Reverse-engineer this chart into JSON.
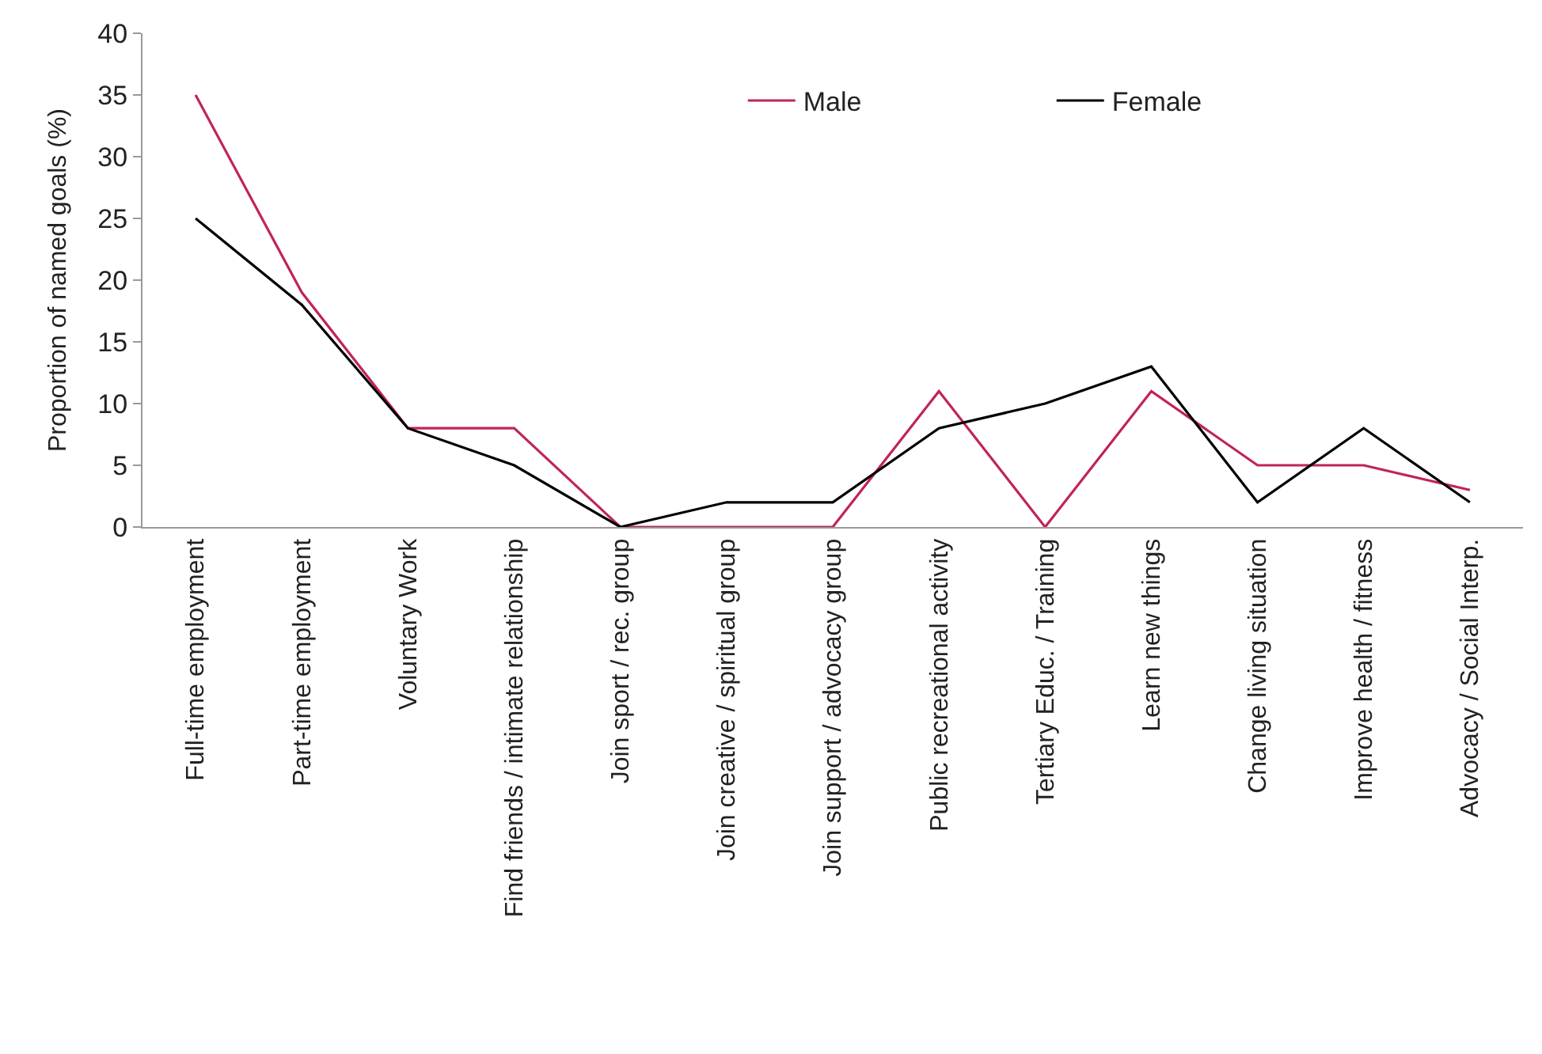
{
  "chart_data": {
    "type": "line",
    "ylabel": "Proportion of named goals (%)",
    "categories": [
      "Full-time employment",
      "Part-time employment",
      "Voluntary Work",
      "Find friends / intimate relationship",
      "Join sport / rec. group",
      "Join creative / spiritual group",
      "Join support / advocacy group",
      "Public recreational activity",
      "Tertiary Educ. / Training",
      "Learn new things",
      "Change living situation",
      "Improve health / fitness",
      "Advocacy / Social Interp."
    ],
    "series": [
      {
        "name": "Male",
        "color": "#c0245a",
        "values": [
          35,
          19,
          8,
          8,
          0,
          0,
          0,
          11,
          0,
          11,
          5,
          5,
          3
        ]
      },
      {
        "name": "Female",
        "color": "#000000",
        "values": [
          25,
          18,
          8,
          5,
          0,
          2,
          2,
          8,
          10,
          13,
          2,
          8,
          2
        ]
      }
    ],
    "ylim": [
      0,
      40
    ],
    "yticks": [
      0,
      5,
      10,
      15,
      20,
      25,
      30,
      35,
      40
    ],
    "legend": "top right",
    "marker": "none",
    "line_style": "solid"
  }
}
